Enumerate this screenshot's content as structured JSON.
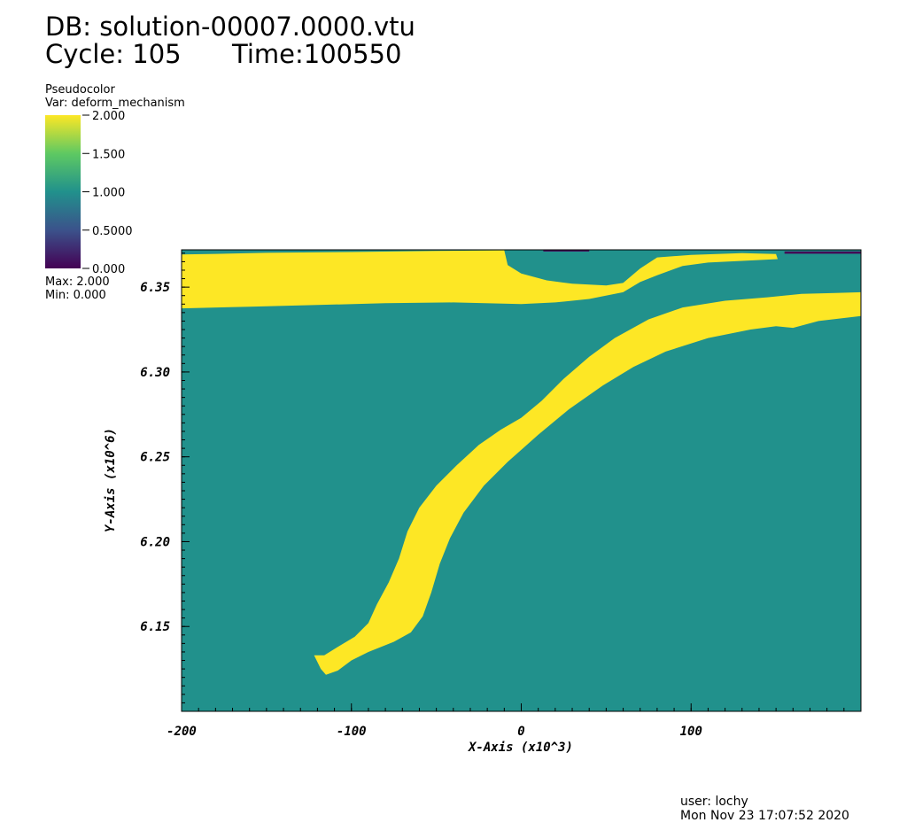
{
  "header": {
    "db": "DB: solution-00007.0000.vtu",
    "cycle": "Cycle: 105",
    "time": "Time:100550"
  },
  "legend": {
    "plot_type": "Pseudocolor",
    "variable": "Var: deform_mechanism",
    "ticks": [
      "2.000",
      "1.500",
      "1.000",
      "0.5000",
      "0.000"
    ],
    "max": "Max:  2.000",
    "min": "Min:  0.000",
    "colors": {
      "high": "#fde725",
      "mid_high": "#5ec962",
      "mid": "#21918c",
      "mid_low": "#3b528b",
      "low": "#440154"
    }
  },
  "chart_data": {
    "type": "heatmap",
    "xlabel": "X-Axis (x10^3)",
    "ylabel": "Y-Axis (x10^6)",
    "xlim": [
      -200,
      200
    ],
    "ylim": [
      6.1,
      6.372
    ],
    "xticks": [
      -200,
      -100,
      0,
      100
    ],
    "xtick_labels": [
      "-200",
      "-100",
      "0",
      "100"
    ],
    "yticks": [
      6.15,
      6.2,
      6.25,
      6.3,
      6.35
    ],
    "ytick_labels": [
      "6.15",
      "6.20",
      "6.25",
      "6.30",
      "6.35"
    ],
    "colorbar_range": [
      0,
      2
    ],
    "background_value": 1.0,
    "regions": [
      {
        "value": 2.0,
        "points": [
          [
            -200,
            6.3693
          ],
          [
            -180,
            6.3696
          ],
          [
            -150,
            6.3702
          ],
          [
            -100,
            6.3707
          ],
          [
            -50,
            6.3713
          ],
          [
            -10,
            6.3717
          ],
          [
            -8,
            6.363
          ],
          [
            0,
            6.358
          ],
          [
            15,
            6.354
          ],
          [
            30,
            6.352
          ],
          [
            50,
            6.351
          ],
          [
            60,
            6.3525
          ],
          [
            70,
            6.361
          ],
          [
            80,
            6.3675
          ],
          [
            100,
            6.369
          ],
          [
            130,
            6.37
          ],
          [
            150,
            6.3695
          ],
          [
            151,
            6.3665
          ],
          [
            130,
            6.3655
          ],
          [
            110,
            6.3645
          ],
          [
            95,
            6.3625
          ],
          [
            80,
            6.357
          ],
          [
            70,
            6.353
          ],
          [
            60,
            6.347
          ],
          [
            40,
            6.343
          ],
          [
            20,
            6.341
          ],
          [
            0,
            6.34
          ],
          [
            -40,
            6.341
          ],
          [
            -80,
            6.3405
          ],
          [
            -120,
            6.3395
          ],
          [
            -160,
            6.3385
          ],
          [
            -200,
            6.3375
          ]
        ]
      },
      {
        "value": 2.0,
        "points": [
          [
            -122,
            6.133
          ],
          [
            -118,
            6.125
          ],
          [
            -115,
            6.1215
          ],
          [
            -108,
            6.124
          ],
          [
            -100,
            6.13
          ],
          [
            -90,
            6.135
          ],
          [
            -75,
            6.141
          ],
          [
            -65,
            6.1465
          ],
          [
            -58,
            6.156
          ],
          [
            -53,
            6.17
          ],
          [
            -48,
            6.187
          ],
          [
            -42,
            6.202
          ],
          [
            -34,
            6.217
          ],
          [
            -22,
            6.233
          ],
          [
            -8,
            6.247
          ],
          [
            10,
            6.263
          ],
          [
            28,
            6.278
          ],
          [
            48,
            6.292
          ],
          [
            66,
            6.303
          ],
          [
            85,
            6.312
          ],
          [
            110,
            6.32
          ],
          [
            135,
            6.325
          ],
          [
            150,
            6.327
          ],
          [
            160,
            6.326
          ],
          [
            175,
            6.33
          ],
          [
            200,
            6.333
          ],
          [
            200,
            6.347
          ],
          [
            185,
            6.3465
          ],
          [
            165,
            6.346
          ],
          [
            145,
            6.344
          ],
          [
            120,
            6.342
          ],
          [
            95,
            6.338
          ],
          [
            75,
            6.331
          ],
          [
            55,
            6.32
          ],
          [
            40,
            6.309
          ],
          [
            25,
            6.296
          ],
          [
            12,
            6.283
          ],
          [
            0,
            6.273
          ],
          [
            -12,
            6.266
          ],
          [
            -25,
            6.257
          ],
          [
            -38,
            6.245
          ],
          [
            -50,
            6.233
          ],
          [
            -60,
            6.22
          ],
          [
            -67,
            6.206
          ],
          [
            -72,
            6.19
          ],
          [
            -78,
            6.176
          ],
          [
            -85,
            6.163
          ],
          [
            -90,
            6.152
          ],
          [
            -98,
            6.144
          ],
          [
            -108,
            6.138
          ],
          [
            -116,
            6.133
          ]
        ]
      },
      {
        "value": 0.0,
        "points": [
          [
            13,
            6.372
          ],
          [
            40,
            6.372
          ],
          [
            40,
            6.371
          ],
          [
            13,
            6.371
          ]
        ]
      },
      {
        "value": 0.0,
        "points": [
          [
            155,
            6.371
          ],
          [
            200,
            6.371
          ],
          [
            200,
            6.3697
          ],
          [
            155,
            6.3697
          ]
        ]
      }
    ]
  },
  "footer": {
    "user": "user: lochy",
    "date": "Mon Nov 23 17:07:52 2020"
  }
}
